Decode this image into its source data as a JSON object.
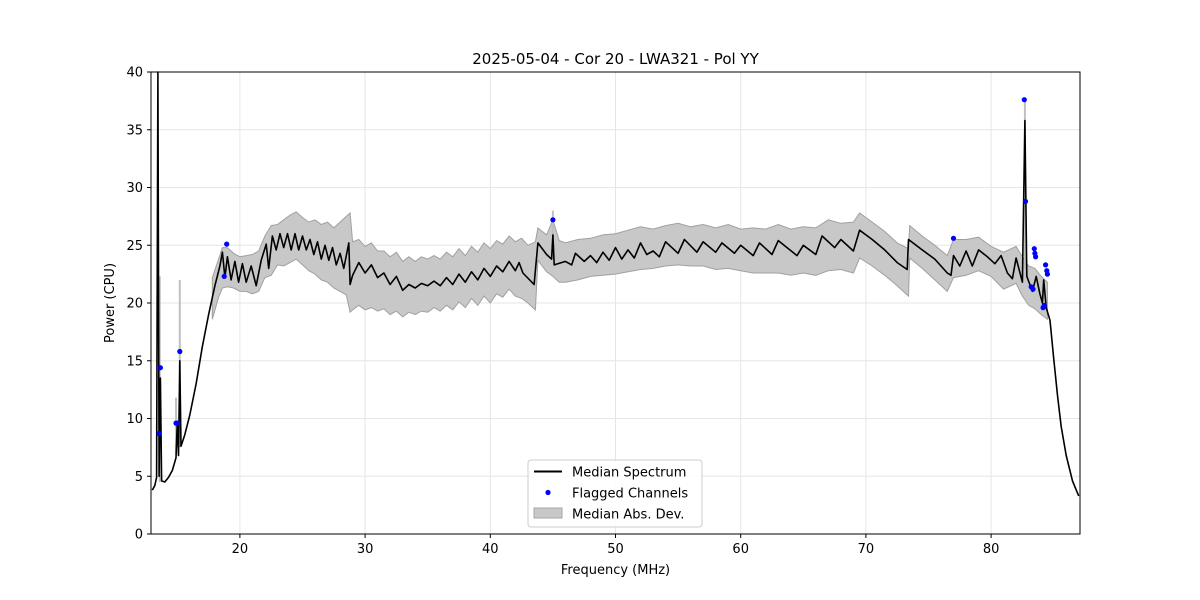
{
  "chart_data": {
    "type": "line",
    "title": "2025-05-04 - Cor 20 - LWA321 - Pol YY",
    "xlabel": "Frequency (MHz)",
    "ylabel": "Power (CPU)",
    "xlim": [
      12.9,
      87.1
    ],
    "ylim": [
      0,
      40
    ],
    "xticks": [
      20,
      30,
      40,
      50,
      60,
      70,
      80
    ],
    "yticks": [
      0,
      5,
      10,
      15,
      20,
      25,
      30,
      35,
      40
    ],
    "grid": true,
    "legend_position": "lower-center",
    "legend": [
      {
        "label": "Median Spectrum",
        "kind": "line",
        "color": "#000000"
      },
      {
        "label": "Flagged Channels",
        "kind": "marker",
        "color": "#0000ff"
      },
      {
        "label": "Median Abs. Dev.",
        "kind": "band",
        "color": "#c8c8c8"
      }
    ],
    "series": [
      {
        "name": "Median Spectrum",
        "color": "#000000",
        "points": [
          [
            13.0,
            3.8
          ],
          [
            13.2,
            4.2
          ],
          [
            13.35,
            4.9
          ],
          [
            13.45,
            40.0
          ],
          [
            13.55,
            5.0
          ],
          [
            13.65,
            13.5
          ],
          [
            13.75,
            4.6
          ],
          [
            14.0,
            4.5
          ],
          [
            14.3,
            4.9
          ],
          [
            14.6,
            5.5
          ],
          [
            14.9,
            6.6
          ],
          [
            15.0,
            9.7
          ],
          [
            15.1,
            6.8
          ],
          [
            15.2,
            15.0
          ],
          [
            15.3,
            7.6
          ],
          [
            15.6,
            8.6
          ],
          [
            16.0,
            10.3
          ],
          [
            16.5,
            13.0
          ],
          [
            17.0,
            16.2
          ],
          [
            17.5,
            19.0
          ],
          [
            18.0,
            21.5
          ],
          [
            18.4,
            23.2
          ],
          [
            18.6,
            24.4
          ],
          [
            18.8,
            22.2
          ],
          [
            19.0,
            24.0
          ],
          [
            19.3,
            22.0
          ],
          [
            19.6,
            23.6
          ],
          [
            19.9,
            21.8
          ],
          [
            20.2,
            23.4
          ],
          [
            20.5,
            21.8
          ],
          [
            20.9,
            23.2
          ],
          [
            21.3,
            21.5
          ],
          [
            21.7,
            23.7
          ],
          [
            22.1,
            25.1
          ],
          [
            22.3,
            23.0
          ],
          [
            22.6,
            25.8
          ],
          [
            22.9,
            24.6
          ],
          [
            23.2,
            26.0
          ],
          [
            23.5,
            24.8
          ],
          [
            23.8,
            26.0
          ],
          [
            24.1,
            24.6
          ],
          [
            24.4,
            26.0
          ],
          [
            24.7,
            24.6
          ],
          [
            25.0,
            25.8
          ],
          [
            25.3,
            24.6
          ],
          [
            25.6,
            25.5
          ],
          [
            25.9,
            24.2
          ],
          [
            26.2,
            25.3
          ],
          [
            26.5,
            23.8
          ],
          [
            26.8,
            25.0
          ],
          [
            27.1,
            23.7
          ],
          [
            27.4,
            24.8
          ],
          [
            27.7,
            23.3
          ],
          [
            28.0,
            24.3
          ],
          [
            28.3,
            23.0
          ],
          [
            28.7,
            25.2
          ],
          [
            28.8,
            21.6
          ],
          [
            29.0,
            22.4
          ],
          [
            29.5,
            23.5
          ],
          [
            30.0,
            22.6
          ],
          [
            30.5,
            23.3
          ],
          [
            31.0,
            22.2
          ],
          [
            31.5,
            22.6
          ],
          [
            32.0,
            21.6
          ],
          [
            32.5,
            22.3
          ],
          [
            33.0,
            21.1
          ],
          [
            33.5,
            21.6
          ],
          [
            34.0,
            21.3
          ],
          [
            34.5,
            21.7
          ],
          [
            35.0,
            21.5
          ],
          [
            35.5,
            21.9
          ],
          [
            36.0,
            21.5
          ],
          [
            36.5,
            22.2
          ],
          [
            37.0,
            21.6
          ],
          [
            37.5,
            22.5
          ],
          [
            38.0,
            21.8
          ],
          [
            38.5,
            22.7
          ],
          [
            39.0,
            22.0
          ],
          [
            39.5,
            23.0
          ],
          [
            40.0,
            22.3
          ],
          [
            40.5,
            23.2
          ],
          [
            41.0,
            22.7
          ],
          [
            41.5,
            23.6
          ],
          [
            42.0,
            22.8
          ],
          [
            42.3,
            23.5
          ],
          [
            42.6,
            22.6
          ],
          [
            43.5,
            21.6
          ],
          [
            43.8,
            25.2
          ],
          [
            44.5,
            24.2
          ],
          [
            44.9,
            23.8
          ],
          [
            45.0,
            25.9
          ],
          [
            45.1,
            23.3
          ],
          [
            46.0,
            23.6
          ],
          [
            46.5,
            23.3
          ],
          [
            46.8,
            24.3
          ],
          [
            47.5,
            23.6
          ],
          [
            48.0,
            24.1
          ],
          [
            48.5,
            23.5
          ],
          [
            49.0,
            24.4
          ],
          [
            49.5,
            23.7
          ],
          [
            50.0,
            24.8
          ],
          [
            50.5,
            23.8
          ],
          [
            51.0,
            24.6
          ],
          [
            51.5,
            23.9
          ],
          [
            52.0,
            25.2
          ],
          [
            52.5,
            24.2
          ],
          [
            53.0,
            24.5
          ],
          [
            53.5,
            24.0
          ],
          [
            54.0,
            25.3
          ],
          [
            55.0,
            24.3
          ],
          [
            55.5,
            25.5
          ],
          [
            56.5,
            24.4
          ],
          [
            57.0,
            25.3
          ],
          [
            58.0,
            24.4
          ],
          [
            58.5,
            25.2
          ],
          [
            59.5,
            24.3
          ],
          [
            60.0,
            25.0
          ],
          [
            61.0,
            24.1
          ],
          [
            61.5,
            25.2
          ],
          [
            62.5,
            24.2
          ],
          [
            63.0,
            25.4
          ],
          [
            64.5,
            24.1
          ],
          [
            65.0,
            25.0
          ],
          [
            66.0,
            24.2
          ],
          [
            66.5,
            25.8
          ],
          [
            67.5,
            24.8
          ],
          [
            68.0,
            25.5
          ],
          [
            69.0,
            24.5
          ],
          [
            69.5,
            26.3
          ],
          [
            70.5,
            25.5
          ],
          [
            71.5,
            24.6
          ],
          [
            72.5,
            23.5
          ],
          [
            73.3,
            22.9
          ],
          [
            73.4,
            25.5
          ],
          [
            74.5,
            24.6
          ],
          [
            75.5,
            23.8
          ],
          [
            76.5,
            22.6
          ],
          [
            76.8,
            22.4
          ],
          [
            77.0,
            24.1
          ],
          [
            77.5,
            23.2
          ],
          [
            78.0,
            24.5
          ],
          [
            78.5,
            23.2
          ],
          [
            79.0,
            24.6
          ],
          [
            79.7,
            24.0
          ],
          [
            80.3,
            23.4
          ],
          [
            80.8,
            24.1
          ],
          [
            81.3,
            22.6
          ],
          [
            81.7,
            22.1
          ],
          [
            82.0,
            23.9
          ],
          [
            82.5,
            21.8
          ],
          [
            82.7,
            35.8
          ],
          [
            82.85,
            22.3
          ],
          [
            83.3,
            21.0
          ],
          [
            83.6,
            22.3
          ],
          [
            83.9,
            20.8
          ],
          [
            84.1,
            20.0
          ],
          [
            84.2,
            22.0
          ],
          [
            84.4,
            19.6
          ],
          [
            84.7,
            18.5
          ],
          [
            85.0,
            15.2
          ],
          [
            85.3,
            12.0
          ],
          [
            85.6,
            9.3
          ],
          [
            86.0,
            6.8
          ],
          [
            86.5,
            4.6
          ],
          [
            87.0,
            3.3
          ]
        ]
      }
    ],
    "band": {
      "name": "Median Abs. Dev.",
      "color": "#c8c8c8",
      "points": [
        [
          17.8,
          22.2,
          18.6
        ],
        [
          18.3,
          23.8,
          20.5
        ],
        [
          18.6,
          24.8,
          21.3
        ],
        [
          19.0,
          24.8,
          21.4
        ],
        [
          19.5,
          24.3,
          21.3
        ],
        [
          20.0,
          24.0,
          21.0
        ],
        [
          20.5,
          24.1,
          21.0
        ],
        [
          21.0,
          24.2,
          20.8
        ],
        [
          21.5,
          24.5,
          21.0
        ],
        [
          22.0,
          25.8,
          22.2
        ],
        [
          22.5,
          26.7,
          22.4
        ],
        [
          23.0,
          26.8,
          23.3
        ],
        [
          23.5,
          27.2,
          23.2
        ],
        [
          24.0,
          27.6,
          23.5
        ],
        [
          24.5,
          27.9,
          23.8
        ],
        [
          25.0,
          27.4,
          23.3
        ],
        [
          25.5,
          27.0,
          22.8
        ],
        [
          26.0,
          27.2,
          22.5
        ],
        [
          26.5,
          26.8,
          22.0
        ],
        [
          27.0,
          27.0,
          21.8
        ],
        [
          27.5,
          26.5,
          21.3
        ],
        [
          28.0,
          27.0,
          21.0
        ],
        [
          28.5,
          27.5,
          20.7
        ],
        [
          28.8,
          27.8,
          19.2
        ],
        [
          29.0,
          25.3,
          19.4
        ],
        [
          29.5,
          25.5,
          19.8
        ],
        [
          30.0,
          24.9,
          19.4
        ],
        [
          30.5,
          25.2,
          19.6
        ],
        [
          31.0,
          24.5,
          19.3
        ],
        [
          31.5,
          24.5,
          19.5
        ],
        [
          32.0,
          24.0,
          19.0
        ],
        [
          32.5,
          24.4,
          19.3
        ],
        [
          33.0,
          23.6,
          18.8
        ],
        [
          33.5,
          24.0,
          19.2
        ],
        [
          34.0,
          23.6,
          19.0
        ],
        [
          34.5,
          24.0,
          19.3
        ],
        [
          35.0,
          23.8,
          19.2
        ],
        [
          35.5,
          24.1,
          19.6
        ],
        [
          36.0,
          23.8,
          19.3
        ],
        [
          36.5,
          24.4,
          19.8
        ],
        [
          37.0,
          24.0,
          19.4
        ],
        [
          37.5,
          24.7,
          20.1
        ],
        [
          38.0,
          24.1,
          19.6
        ],
        [
          38.5,
          24.9,
          20.4
        ],
        [
          39.0,
          24.4,
          19.8
        ],
        [
          39.5,
          25.2,
          20.6
        ],
        [
          40.0,
          24.7,
          20.0
        ],
        [
          40.5,
          25.4,
          20.8
        ],
        [
          41.0,
          25.1,
          20.5
        ],
        [
          41.5,
          25.8,
          21.2
        ],
        [
          42.0,
          25.3,
          20.6
        ],
        [
          42.5,
          25.6,
          20.4
        ],
        [
          43.0,
          25.0,
          20.0
        ],
        [
          43.6,
          25.3,
          19.4
        ],
        [
          43.8,
          26.5,
          23.7
        ],
        [
          44.5,
          25.9,
          22.7
        ],
        [
          45.0,
          27.2,
          22.3
        ],
        [
          45.5,
          25.4,
          21.8
        ],
        [
          46.0,
          25.2,
          21.8
        ],
        [
          47.0,
          25.5,
          22.0
        ],
        [
          48.0,
          25.6,
          22.3
        ],
        [
          49.0,
          25.9,
          22.4
        ],
        [
          50.0,
          26.0,
          22.5
        ],
        [
          51.0,
          26.3,
          22.7
        ],
        [
          52.0,
          26.6,
          22.9
        ],
        [
          53.0,
          26.4,
          23.0
        ],
        [
          54.0,
          26.7,
          23.2
        ],
        [
          55.0,
          26.9,
          23.3
        ],
        [
          56.0,
          26.6,
          23.2
        ],
        [
          57.0,
          26.8,
          23.2
        ],
        [
          58.0,
          26.5,
          22.9
        ],
        [
          59.0,
          26.8,
          23.0
        ],
        [
          60.0,
          26.4,
          22.8
        ],
        [
          61.0,
          26.5,
          22.6
        ],
        [
          62.0,
          26.4,
          22.6
        ],
        [
          63.0,
          26.8,
          22.6
        ],
        [
          64.0,
          26.4,
          22.4
        ],
        [
          65.0,
          26.6,
          22.6
        ],
        [
          66.0,
          26.5,
          22.4
        ],
        [
          67.0,
          27.2,
          22.8
        ],
        [
          68.0,
          26.9,
          22.9
        ],
        [
          69.0,
          27.0,
          22.6
        ],
        [
          69.5,
          27.8,
          23.9
        ],
        [
          70.5,
          27.0,
          23.2
        ],
        [
          71.5,
          26.2,
          22.4
        ],
        [
          72.5,
          25.2,
          21.5
        ],
        [
          73.4,
          24.7,
          20.6
        ],
        [
          73.5,
          26.7,
          23.9
        ],
        [
          74.5,
          25.8,
          23.0
        ],
        [
          75.5,
          25.0,
          22.0
        ],
        [
          76.5,
          24.1,
          21.0
        ],
        [
          77.0,
          25.5,
          22.2
        ],
        [
          78.0,
          25.5,
          22.4
        ],
        [
          79.0,
          25.7,
          22.8
        ],
        [
          80.0,
          24.9,
          22.3
        ],
        [
          81.0,
          24.4,
          21.2
        ],
        [
          82.0,
          24.9,
          21.7
        ],
        [
          82.5,
          24.0,
          20.6
        ],
        [
          83.0,
          23.2,
          19.8
        ],
        [
          83.5,
          23.0,
          19.5
        ],
        [
          84.0,
          22.3,
          19.0
        ],
        [
          84.5,
          21.8,
          18.6
        ]
      ]
    },
    "flagged": {
      "name": "Flagged Channels",
      "color": "#0000ff",
      "points": [
        [
          13.55,
          8.7
        ],
        [
          13.65,
          14.4
        ],
        [
          14.9,
          9.6
        ],
        [
          15.05,
          9.6
        ],
        [
          15.2,
          15.8
        ],
        [
          18.75,
          22.3
        ],
        [
          18.95,
          25.1
        ],
        [
          45.0,
          27.2
        ],
        [
          77.0,
          25.6
        ],
        [
          82.65,
          37.6
        ],
        [
          82.75,
          28.8
        ],
        [
          83.2,
          21.4
        ],
        [
          83.35,
          21.2
        ],
        [
          83.45,
          24.7
        ],
        [
          83.5,
          24.3
        ],
        [
          83.55,
          24.0
        ],
        [
          84.15,
          19.6
        ],
        [
          84.25,
          19.8
        ],
        [
          84.35,
          23.3
        ],
        [
          84.45,
          22.8
        ],
        [
          84.5,
          22.5
        ]
      ]
    }
  }
}
